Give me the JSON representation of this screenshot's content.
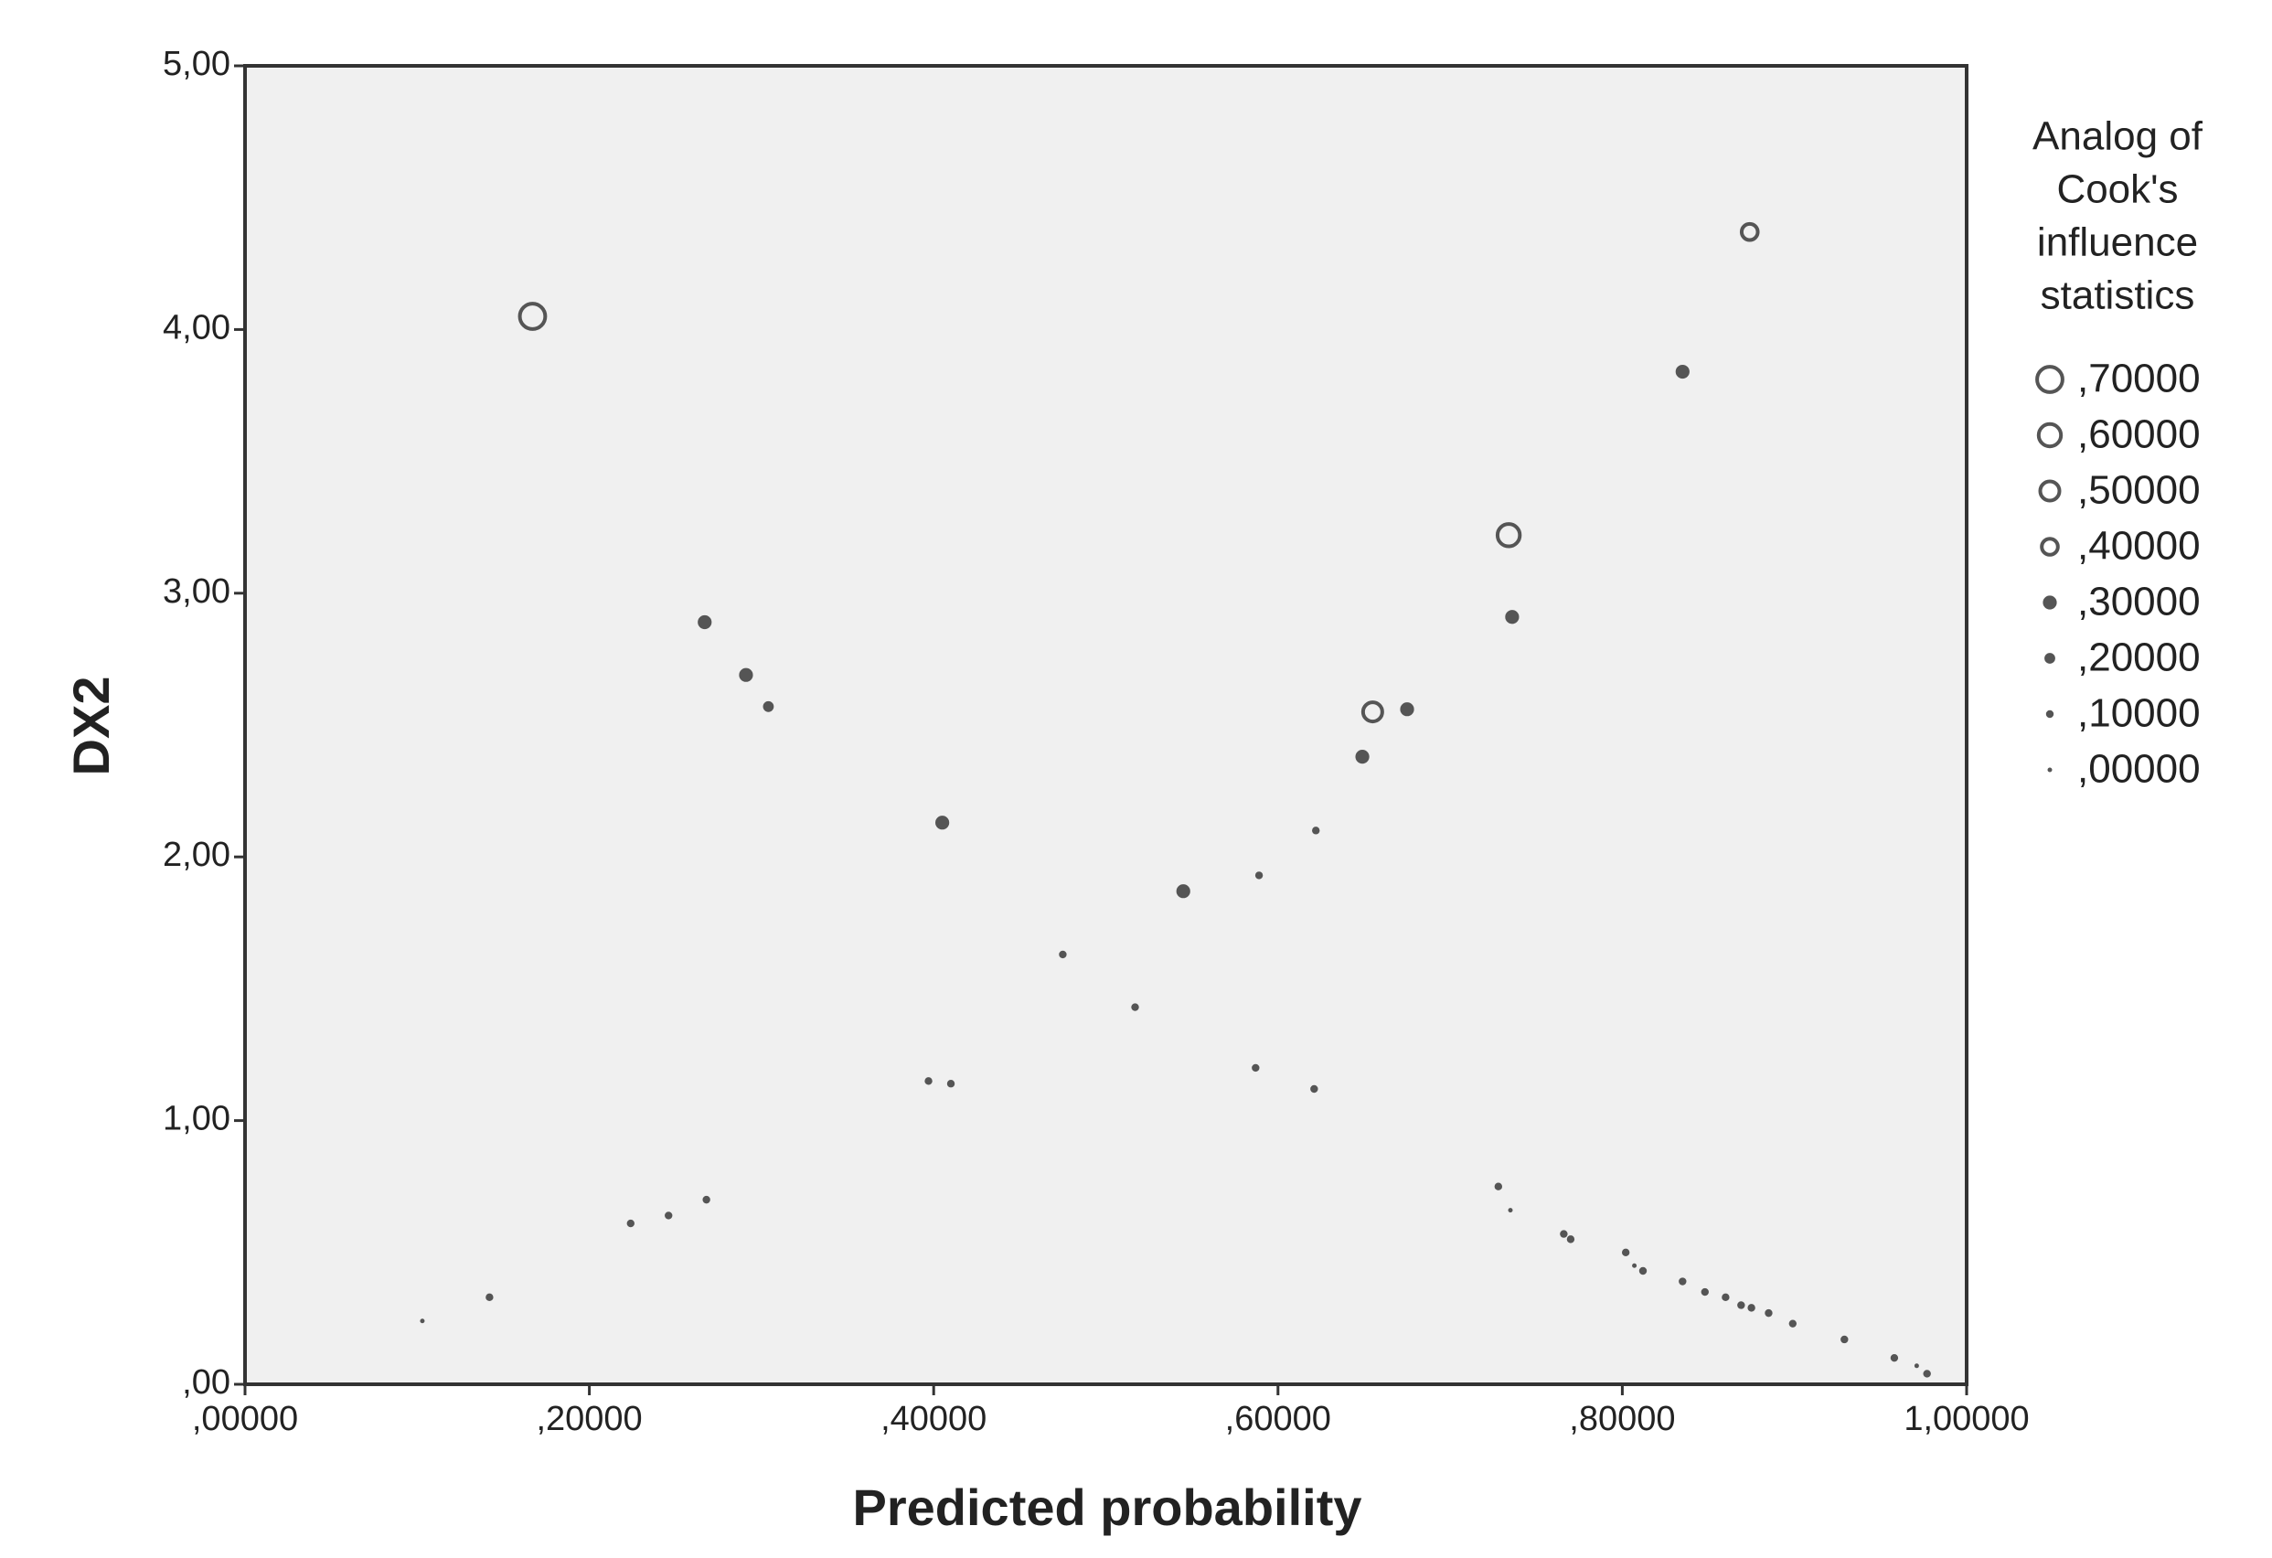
{
  "chart_data": {
    "type": "scatter",
    "x_label": "Predicted probability",
    "y_label": "DX2",
    "legend_title": [
      "Analog of",
      "Cook's",
      "influence",
      "statistics"
    ],
    "size_legend": [
      {
        "value": 0.7,
        "label": ",70000"
      },
      {
        "value": 0.6,
        "label": ",60000"
      },
      {
        "value": 0.5,
        "label": ",50000"
      },
      {
        "value": 0.4,
        "label": ",40000"
      },
      {
        "value": 0.3,
        "label": ",30000"
      },
      {
        "value": 0.2,
        "label": ",20000"
      },
      {
        "value": 0.1,
        "label": ",10000"
      },
      {
        "value": 0,
        "label": ",00000"
      }
    ],
    "xlim": [
      0,
      1
    ],
    "ylim": [
      0,
      5
    ],
    "xticks": [
      {
        "value": 0,
        "label": ",00000"
      },
      {
        "value": 0.2,
        "label": ",20000"
      },
      {
        "value": 0.4,
        "label": ",40000"
      },
      {
        "value": 0.6,
        "label": ",60000"
      },
      {
        "value": 0.8,
        "label": ",80000"
      },
      {
        "value": 1,
        "label": "1,00000"
      }
    ],
    "yticks": [
      {
        "value": 0,
        "label": ",00"
      },
      {
        "value": 1,
        "label": "1,00"
      },
      {
        "value": 2,
        "label": "2,00"
      },
      {
        "value": 3,
        "label": "3,00"
      },
      {
        "value": 4,
        "label": "4,00"
      },
      {
        "value": 5,
        "label": "5,00"
      }
    ],
    "color": "#555555",
    "background": "#f0f0f0",
    "series": [
      {
        "x": [
          0.167,
          0.874,
          0.835,
          0.734,
          0.736,
          0.267,
          0.291,
          0.304,
          0.655,
          0.675,
          0.649,
          0.405,
          0.545,
          0.622,
          0.589,
          0.475,
          0.517,
          0.397,
          0.41,
          0.587,
          0.621,
          0.268,
          0.246,
          0.224,
          0.142,
          0.103,
          0.728,
          0.735,
          0.766,
          0.77,
          0.802,
          0.807,
          0.812,
          0.835,
          0.848,
          0.86,
          0.869,
          0.875,
          0.885,
          0.899,
          0.929,
          0.958,
          0.971,
          0.977
        ],
        "values": [
          4.05,
          4.37,
          3.84,
          3.22,
          2.91,
          2.89,
          2.69,
          2.57,
          2.55,
          2.56,
          2.38,
          2.13,
          1.87,
          2.1,
          1.93,
          1.63,
          1.43,
          1.15,
          1.14,
          1.2,
          1.12,
          0.7,
          0.64,
          0.61,
          0.33,
          0.24,
          0.75,
          0.66,
          0.57,
          0.55,
          0.5,
          0.45,
          0.43,
          0.39,
          0.35,
          0.33,
          0.3,
          0.29,
          0.27,
          0.23,
          0.17,
          0.1,
          0.07,
          0.04
        ],
        "size": [
          0.7,
          0.4,
          0.3,
          0.6,
          0.3,
          0.3,
          0.3,
          0.2,
          0.5,
          0.3,
          0.3,
          0.3,
          0.3,
          0.1,
          0.1,
          0.1,
          0.1,
          0.1,
          0.1,
          0.1,
          0.1,
          0.1,
          0.1,
          0.1,
          0.1,
          0,
          0.1,
          0,
          0.1,
          0.1,
          0.1,
          0,
          0.1,
          0.1,
          0.1,
          0.1,
          0.1,
          0.1,
          0.1,
          0.1,
          0.1,
          0.1,
          0,
          0.1
        ]
      }
    ]
  }
}
